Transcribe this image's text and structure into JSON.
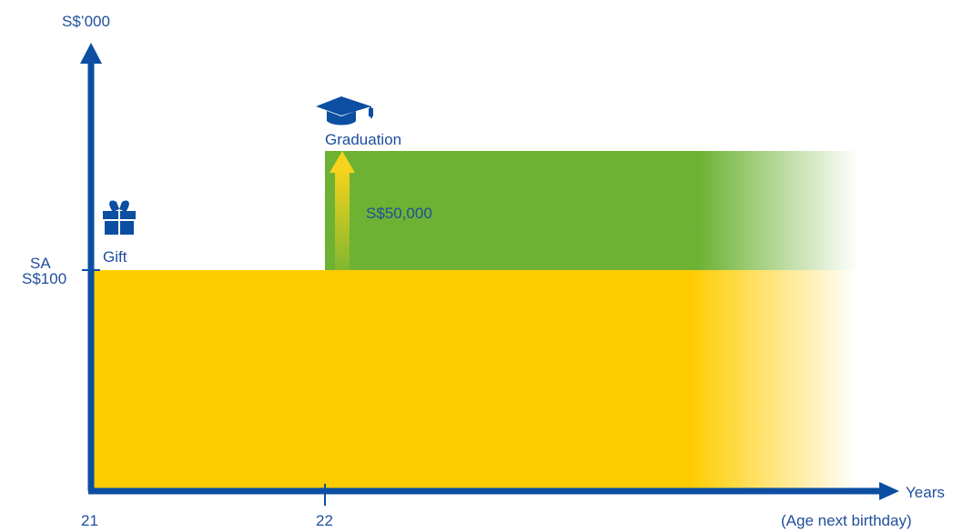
{
  "y_axis_unit": "S$’000",
  "x_axis": {
    "label_line1": "Years",
    "label_line2": "(Age next birthday)",
    "tick_start": "21",
    "tick_second": "22"
  },
  "y_tick": {
    "line1": "SA",
    "line2": "S$100"
  },
  "events": {
    "gift_label": "Gift",
    "graduation_label": "Graduation",
    "graduation_amount": "S$50,000"
  },
  "icons": {
    "gift": "gift-icon",
    "graduation": "graduation-cap-icon"
  },
  "colors": {
    "axis": "#0b4ea2",
    "base_block": "#ffcc00",
    "graduation_block": "#6db233",
    "arrow": "#f6d31c"
  }
}
